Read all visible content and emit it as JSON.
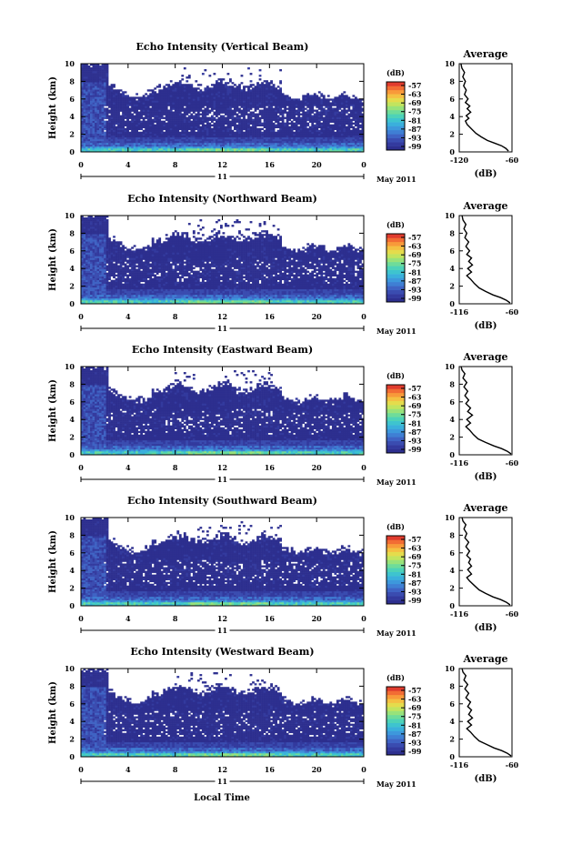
{
  "figure": {
    "xlabel": "Local Time",
    "date_label": "May 2011",
    "day_label": "11",
    "unit_label": "(dB)",
    "avg_title": "Average",
    "avg_xlabel": "(dB)",
    "ylabel": "Height (km)"
  },
  "colors": {
    "colormap": [
      "#2d2f8f",
      "#333a9e",
      "#3a4cb0",
      "#3f63c4",
      "#3f7fd4",
      "#3d98dc",
      "#3ab0dc",
      "#3ec4cf",
      "#4dd2b8",
      "#6edc9a",
      "#98e27a",
      "#c2e45e",
      "#e4dc4c",
      "#f4c042",
      "#f89a3a",
      "#f26c34",
      "#e03c2e"
    ],
    "background": "#ffffff",
    "profile_line": "#000000"
  },
  "chart_data": [
    {
      "type": "heatmap",
      "title": "Echo Intensity (Vertical Beam)",
      "ylabel": "Height (km)",
      "xlabel": "",
      "x_ticks": [
        "0",
        "4",
        "8",
        "12",
        "16",
        "20",
        "0"
      ],
      "y_ticks": [
        "0",
        "2",
        "4",
        "6",
        "8",
        "10"
      ],
      "xlim": [
        0,
        24
      ],
      "ylim": [
        0,
        10
      ],
      "colorbar": {
        "label": "(dB)",
        "ticks": [
          "-57",
          "-63",
          "-69",
          "-75",
          "-81",
          "-87",
          "-93",
          "-99"
        ],
        "range": [
          -99,
          -57
        ]
      },
      "profile": {
        "title": "Average",
        "xlabel": "(dB)",
        "x_ticks": [
          "-120",
          "-60"
        ],
        "xlim": [
          -120,
          -60
        ],
        "y_ticks": [
          "0",
          "2",
          "4",
          "6",
          "8",
          "10"
        ],
        "ylim": [
          0,
          10
        ],
        "points": [
          [
            -64,
            0.1
          ],
          [
            -67,
            0.4
          ],
          [
            -72,
            0.7
          ],
          [
            -80,
            1.0
          ],
          [
            -88,
            1.3
          ],
          [
            -95,
            1.7
          ],
          [
            -101,
            2.1
          ],
          [
            -106,
            2.6
          ],
          [
            -111,
            3.1
          ],
          [
            -113,
            3.5
          ],
          [
            -109,
            3.8
          ],
          [
            -112,
            4.1
          ],
          [
            -107,
            4.5
          ],
          [
            -111,
            4.9
          ],
          [
            -108,
            5.2
          ],
          [
            -113,
            5.6
          ],
          [
            -110,
            6.0
          ],
          [
            -114,
            6.5
          ],
          [
            -112,
            7.0
          ],
          [
            -115,
            7.5
          ],
          [
            -113,
            8.0
          ],
          [
            -116,
            8.5
          ],
          [
            -114,
            9.0
          ],
          [
            -117,
            9.5
          ],
          [
            -118,
            10.0
          ]
        ]
      }
    },
    {
      "type": "heatmap",
      "title": "Echo Intensity (Northward Beam)",
      "ylabel": "Height (km)",
      "xlabel": "",
      "x_ticks": [
        "0",
        "4",
        "8",
        "12",
        "16",
        "20",
        "0"
      ],
      "y_ticks": [
        "0",
        "2",
        "4",
        "6",
        "8",
        "10"
      ],
      "xlim": [
        0,
        24
      ],
      "ylim": [
        0,
        10
      ],
      "colorbar": {
        "label": "(dB)",
        "ticks": [
          "-57",
          "-63",
          "-69",
          "-75",
          "-81",
          "-87",
          "-93",
          "-99"
        ],
        "range": [
          -99,
          -57
        ]
      },
      "profile": {
        "title": "Average",
        "xlabel": "(dB)",
        "x_ticks": [
          "-116",
          "-60"
        ],
        "xlim": [
          -116,
          -60
        ],
        "y_ticks": [
          "0",
          "2",
          "4",
          "6",
          "8",
          "10"
        ],
        "ylim": [
          0,
          10
        ],
        "points": [
          [
            -62,
            0.1
          ],
          [
            -66,
            0.4
          ],
          [
            -72,
            0.7
          ],
          [
            -80,
            1.0
          ],
          [
            -88,
            1.4
          ],
          [
            -95,
            1.8
          ],
          [
            -100,
            2.3
          ],
          [
            -104,
            2.8
          ],
          [
            -108,
            3.2
          ],
          [
            -103,
            3.6
          ],
          [
            -107,
            4.0
          ],
          [
            -102,
            4.4
          ],
          [
            -106,
            4.8
          ],
          [
            -103,
            5.2
          ],
          [
            -108,
            5.6
          ],
          [
            -105,
            6.0
          ],
          [
            -109,
            6.5
          ],
          [
            -106,
            7.0
          ],
          [
            -110,
            7.5
          ],
          [
            -108,
            8.0
          ],
          [
            -111,
            8.5
          ],
          [
            -109,
            9.0
          ],
          [
            -112,
            9.5
          ],
          [
            -113,
            10.0
          ]
        ]
      }
    },
    {
      "type": "heatmap",
      "title": "Echo Intensity (Eastward Beam)",
      "ylabel": "Height (km)",
      "xlabel": "",
      "x_ticks": [
        "0",
        "4",
        "8",
        "12",
        "16",
        "20",
        "0"
      ],
      "y_ticks": [
        "0",
        "2",
        "4",
        "6",
        "8",
        "10"
      ],
      "xlim": [
        0,
        24
      ],
      "ylim": [
        0,
        10
      ],
      "colorbar": {
        "label": "(dB)",
        "ticks": [
          "-57",
          "-63",
          "-69",
          "-75",
          "-81",
          "-87",
          "-93",
          "-99"
        ],
        "range": [
          -99,
          -57
        ]
      },
      "profile": {
        "title": "Average",
        "xlabel": "(dB)",
        "x_ticks": [
          "-116",
          "-60"
        ],
        "xlim": [
          -116,
          -60
        ],
        "y_ticks": [
          "0",
          "2",
          "4",
          "6",
          "8",
          "10"
        ],
        "ylim": [
          0,
          10
        ],
        "points": [
          [
            -61,
            0.1
          ],
          [
            -65,
            0.4
          ],
          [
            -71,
            0.7
          ],
          [
            -79,
            1.0
          ],
          [
            -88,
            1.4
          ],
          [
            -96,
            1.8
          ],
          [
            -101,
            2.3
          ],
          [
            -105,
            2.8
          ],
          [
            -109,
            3.2
          ],
          [
            -104,
            3.6
          ],
          [
            -108,
            4.0
          ],
          [
            -102,
            4.5
          ],
          [
            -107,
            4.9
          ],
          [
            -104,
            5.3
          ],
          [
            -109,
            5.8
          ],
          [
            -106,
            6.2
          ],
          [
            -110,
            6.7
          ],
          [
            -107,
            7.2
          ],
          [
            -111,
            7.7
          ],
          [
            -108,
            8.2
          ],
          [
            -112,
            8.7
          ],
          [
            -110,
            9.2
          ],
          [
            -113,
            9.6
          ],
          [
            -114,
            10.0
          ]
        ]
      }
    },
    {
      "type": "heatmap",
      "title": "Echo Intensity (Southward Beam)",
      "ylabel": "Height (km)",
      "xlabel": "",
      "x_ticks": [
        "0",
        "4",
        "8",
        "12",
        "16",
        "20",
        "0"
      ],
      "y_ticks": [
        "0",
        "2",
        "4",
        "6",
        "8",
        "10"
      ],
      "xlim": [
        0,
        24
      ],
      "ylim": [
        0,
        10
      ],
      "colorbar": {
        "label": "(dB)",
        "ticks": [
          "-57",
          "-63",
          "-69",
          "-75",
          "-81",
          "-87",
          "-93",
          "-99"
        ],
        "range": [
          -99,
          -57
        ]
      },
      "profile": {
        "title": "Average",
        "xlabel": "(dB)",
        "x_ticks": [
          "-116",
          "-60"
        ],
        "xlim": [
          -116,
          -60
        ],
        "y_ticks": [
          "0",
          "2",
          "4",
          "6",
          "8",
          "10"
        ],
        "ylim": [
          0,
          10
        ],
        "points": [
          [
            -62,
            0.1
          ],
          [
            -66,
            0.4
          ],
          [
            -72,
            0.7
          ],
          [
            -80,
            1.0
          ],
          [
            -88,
            1.4
          ],
          [
            -95,
            1.8
          ],
          [
            -100,
            2.3
          ],
          [
            -105,
            2.8
          ],
          [
            -108,
            3.2
          ],
          [
            -103,
            3.6
          ],
          [
            -107,
            4.1
          ],
          [
            -103,
            4.5
          ],
          [
            -106,
            4.9
          ],
          [
            -104,
            5.3
          ],
          [
            -108,
            5.7
          ],
          [
            -105,
            6.2
          ],
          [
            -109,
            6.7
          ],
          [
            -106,
            7.2
          ],
          [
            -110,
            7.7
          ],
          [
            -108,
            8.2
          ],
          [
            -111,
            8.7
          ],
          [
            -109,
            9.2
          ],
          [
            -112,
            9.6
          ],
          [
            -113,
            10.0
          ]
        ]
      }
    },
    {
      "type": "heatmap",
      "title": "Echo Intensity (Westward Beam)",
      "ylabel": "Height (km)",
      "xlabel": "Local Time",
      "x_ticks": [
        "0",
        "4",
        "8",
        "12",
        "16",
        "20",
        "0"
      ],
      "y_ticks": [
        "0",
        "2",
        "4",
        "6",
        "8",
        "10"
      ],
      "xlim": [
        0,
        24
      ],
      "ylim": [
        0,
        10
      ],
      "colorbar": {
        "label": "(dB)",
        "ticks": [
          "-57",
          "-63",
          "-69",
          "-75",
          "-81",
          "-87",
          "-93",
          "-99"
        ],
        "range": [
          -99,
          -57
        ]
      },
      "profile": {
        "title": "Average",
        "xlabel": "(dB)",
        "x_ticks": [
          "-116",
          "-60"
        ],
        "xlim": [
          -116,
          -60
        ],
        "y_ticks": [
          "0",
          "2",
          "4",
          "6",
          "8",
          "10"
        ],
        "ylim": [
          0,
          10
        ],
        "points": [
          [
            -61,
            0.1
          ],
          [
            -65,
            0.4
          ],
          [
            -71,
            0.7
          ],
          [
            -79,
            1.0
          ],
          [
            -87,
            1.4
          ],
          [
            -95,
            1.8
          ],
          [
            -100,
            2.3
          ],
          [
            -104,
            2.8
          ],
          [
            -108,
            3.2
          ],
          [
            -103,
            3.6
          ],
          [
            -107,
            4.0
          ],
          [
            -102,
            4.4
          ],
          [
            -106,
            4.8
          ],
          [
            -103,
            5.3
          ],
          [
            -107,
            5.7
          ],
          [
            -104,
            6.2
          ],
          [
            -109,
            6.7
          ],
          [
            -106,
            7.2
          ],
          [
            -110,
            7.7
          ],
          [
            -107,
            8.2
          ],
          [
            -111,
            8.7
          ],
          [
            -109,
            9.2
          ],
          [
            -112,
            9.6
          ],
          [
            -113,
            10.0
          ]
        ]
      }
    }
  ]
}
